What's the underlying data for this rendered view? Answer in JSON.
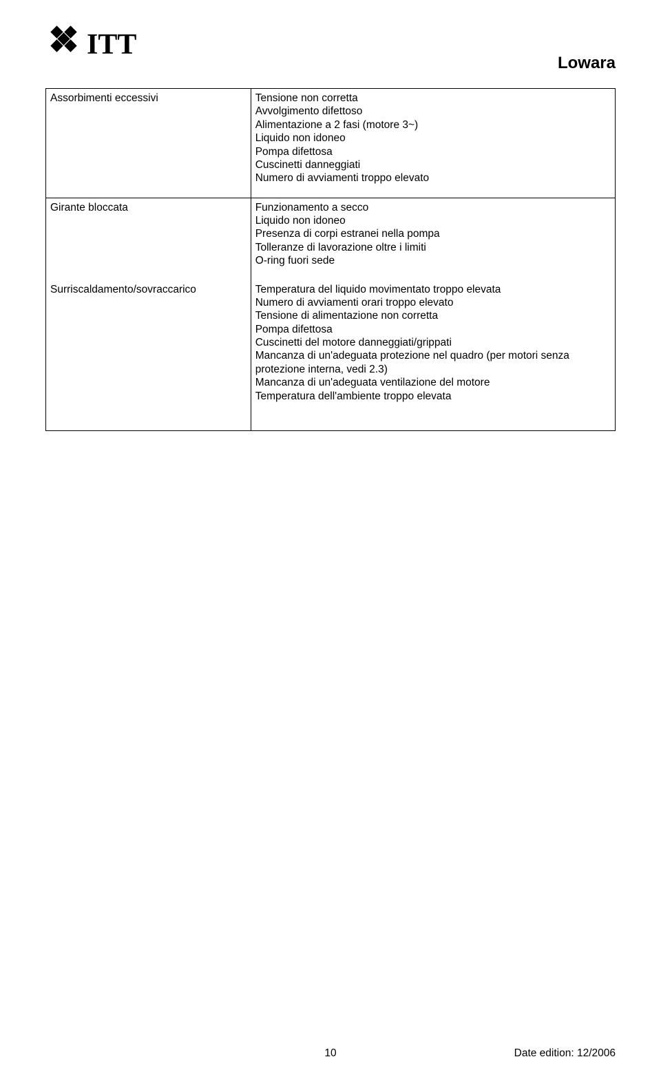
{
  "brand": {
    "logo_text": "ITT",
    "right_brand": "Lowara"
  },
  "colors": {
    "text": "#000000",
    "background": "#ffffff",
    "border": "#000000"
  },
  "table": {
    "rows": [
      {
        "problem": "Assorbimenti eccessivi",
        "causes": [
          "Tensione non corretta",
          "Avvolgimento difettoso",
          "Alimentazione a 2 fasi (motore 3~)",
          "Liquido non idoneo",
          "Pompa difettosa",
          "Cuscinetti danneggiati",
          "Numero di avviamenti troppo elevato"
        ]
      },
      {
        "problem": "Girante bloccata",
        "causes": [
          "Funzionamento a secco",
          "Liquido non idoneo",
          "Presenza di corpi estranei nella pompa",
          "Tolleranze di lavorazione oltre i limiti",
          "O-ring fuori sede"
        ]
      },
      {
        "problem": "Surriscaldamento/sovraccarico",
        "causes": [
          "Temperatura del liquido movimentato troppo elevata",
          "Numero di avviamenti orari troppo elevato",
          "Tensione di alimentazione non corretta",
          "Pompa difettosa",
          "Cuscinetti del motore danneggiati/grippati",
          "Mancanza di un'adeguata protezione nel quadro (per motori senza protezione interna, vedi 2.3)",
          "Mancanza di un'adeguata ventilazione del motore",
          "Temperatura dell'ambiente troppo elevata"
        ]
      }
    ]
  },
  "footer": {
    "page": "10",
    "edition": "Date edition: 12/2006"
  }
}
